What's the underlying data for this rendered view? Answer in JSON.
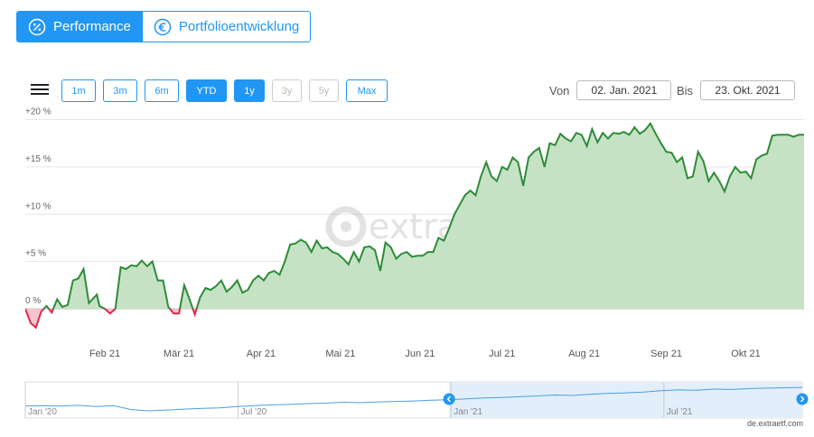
{
  "tabs": [
    {
      "label": "Performance",
      "icon": "percent-icon",
      "active": true
    },
    {
      "label": "Portfolioentwicklung",
      "icon": "euro-icon",
      "active": false
    }
  ],
  "range_buttons": [
    {
      "label": "1m",
      "state": "normal"
    },
    {
      "label": "3m",
      "state": "normal"
    },
    {
      "label": "6m",
      "state": "normal"
    },
    {
      "label": "YTD",
      "state": "selected"
    },
    {
      "label": "1y",
      "state": "selected"
    },
    {
      "label": "3y",
      "state": "disabled"
    },
    {
      "label": "5y",
      "state": "disabled"
    },
    {
      "label": "Max",
      "state": "normal"
    }
  ],
  "date_range": {
    "from_label": "Von",
    "from": "02. Jan. 2021",
    "to_label": "Bis",
    "to": "23. Okt. 2021"
  },
  "watermark": "extraETF",
  "credit": "de.extraetf.com",
  "colors": {
    "accent": "#2196f3",
    "line_pos": "#2e8b3a",
    "fill_pos": "#c5e3c4",
    "line_neg": "#e0274d",
    "fill_neg": "#f4c3cc",
    "navigator": "#4a9fe0"
  },
  "chart_data": {
    "type": "area",
    "ylim": [
      -4,
      20
    ],
    "yticks": [
      0,
      5,
      10,
      15,
      20
    ],
    "ytick_labels": [
      "0 %",
      "+5 %",
      "+10 %",
      "+15 %",
      "+20 %"
    ],
    "xlim": [
      0,
      294
    ],
    "xtick_positions": [
      30,
      58,
      89,
      119,
      149,
      180,
      211,
      242,
      272
    ],
    "xtick_labels": [
      "Feb 21",
      "Mär 21",
      "Apr 21",
      "Mai 21",
      "Jun 21",
      "Jul 21",
      "Aug 21",
      "Sep 21",
      "Okt 21"
    ],
    "series": [
      {
        "x": [
          0,
          2,
          4,
          6,
          8,
          10,
          12,
          14,
          16,
          18,
          20,
          22,
          24,
          26,
          27,
          28,
          30,
          32,
          34,
          36,
          38,
          40,
          42,
          44,
          46,
          48,
          50,
          52,
          54,
          56,
          58,
          60,
          62,
          64,
          66,
          68,
          70,
          72,
          74,
          76,
          78,
          80,
          82,
          84,
          86,
          88,
          90,
          92,
          94,
          96,
          98,
          100,
          102,
          104,
          106,
          108,
          110,
          112,
          114,
          116,
          118,
          120,
          122,
          124,
          126,
          128,
          130,
          132,
          134,
          136,
          138,
          140,
          142,
          144,
          146,
          148,
          150,
          152,
          154,
          156,
          158,
          160,
          162,
          164,
          166,
          168,
          170,
          172,
          174,
          176,
          178,
          180,
          182,
          184,
          186,
          188,
          190,
          192,
          194,
          196,
          198,
          200,
          202,
          204,
          206,
          208,
          210,
          212,
          214,
          216,
          218,
          220,
          222,
          224,
          226,
          228,
          230,
          232,
          234,
          236,
          238,
          240,
          242,
          244,
          246,
          248,
          250,
          252,
          254,
          256,
          258,
          260,
          262,
          264,
          266,
          268,
          270,
          272,
          274,
          276,
          278,
          280,
          282,
          284,
          286,
          288,
          290,
          292,
          294
        ],
        "y": [
          0.0,
          -1.5,
          -2.0,
          -0.3,
          0.3,
          -0.4,
          1.0,
          0.2,
          0.4,
          3.0,
          3.2,
          4.2,
          0.6,
          1.2,
          1.5,
          0.3,
          0.0,
          -0.5,
          0.0,
          4.4,
          4.2,
          4.6,
          4.5,
          5.1,
          4.5,
          5.0,
          3.0,
          3.0,
          0.2,
          -0.5,
          -0.5,
          2.5,
          1.0,
          -0.6,
          1.2,
          2.2,
          2.0,
          2.4,
          3.0,
          1.8,
          2.3,
          3.0,
          1.7,
          2.0,
          3.0,
          3.5,
          3.0,
          3.8,
          4.0,
          3.6,
          5.0,
          6.8,
          6.9,
          7.3,
          7.0,
          6.0,
          7.2,
          6.4,
          6.5,
          6.0,
          5.8,
          5.3,
          4.7,
          6.0,
          5.0,
          6.5,
          6.6,
          6.2,
          4.0,
          7.0,
          6.5,
          5.3,
          5.8,
          6.0,
          5.5,
          5.6,
          5.6,
          6.0,
          6.0,
          7.5,
          7.2,
          8.5,
          10.0,
          11.0,
          12.0,
          12.5,
          12.0,
          14.0,
          15.5,
          14.0,
          13.5,
          15.0,
          14.7,
          16.0,
          15.5,
          13.0,
          16.0,
          16.6,
          17.0,
          15.0,
          17.5,
          17.3,
          18.5,
          18.0,
          17.7,
          18.6,
          18.4,
          17.2,
          19.0,
          17.6,
          18.6,
          18.0,
          18.6,
          18.5,
          18.7,
          18.4,
          19.2,
          18.5,
          18.9,
          19.6,
          18.5,
          17.5,
          16.6,
          16.5,
          15.5,
          16.0,
          13.8,
          14.0,
          16.6,
          15.6,
          13.5,
          14.4,
          13.5,
          12.4,
          14.0,
          15.0,
          14.4,
          14.5,
          13.8,
          15.8,
          16.2,
          16.4,
          18.3,
          18.4,
          18.4,
          18.4,
          18.2,
          18.4,
          18.4
        ]
      }
    ],
    "navigator": {
      "xtick_labels": [
        "Jan '20",
        "Jul '20",
        "Jan '21",
        "Jul '21"
      ],
      "values": [
        2,
        3,
        2,
        4,
        1,
        3,
        -6,
        -9,
        -7,
        -5,
        -3,
        -2,
        1,
        3,
        5,
        6,
        8,
        9,
        11,
        10,
        12,
        13,
        14,
        16,
        17,
        19,
        21,
        22,
        24,
        26,
        28,
        27,
        30,
        32,
        33,
        35,
        38,
        40,
        39,
        42,
        41,
        43,
        44,
        45,
        46
      ],
      "selected_from_index": 24
    }
  }
}
